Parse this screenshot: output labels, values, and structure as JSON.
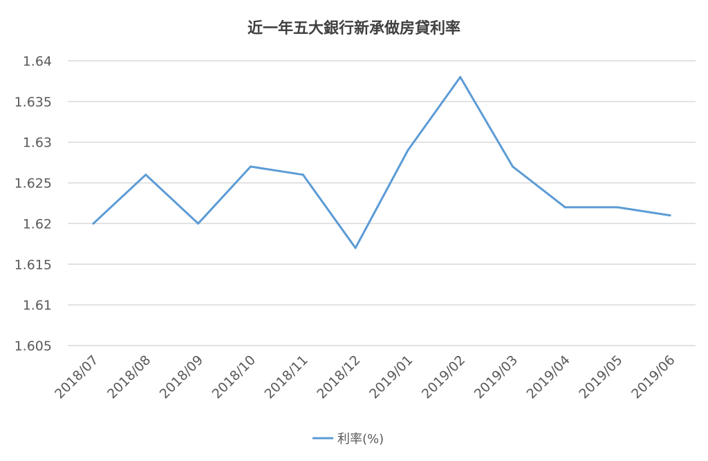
{
  "chart_data": {
    "type": "line",
    "title": "近一年五大銀行新承做房貸利率",
    "xlabel": "",
    "ylabel": "",
    "categories": [
      "2018/07",
      "2018/08",
      "2018/09",
      "2018/10",
      "2018/11",
      "2018/12",
      "2019/01",
      "2019/02",
      "2019/03",
      "2019/04",
      "2019/05",
      "2019/06"
    ],
    "series": [
      {
        "name": "利率(%)",
        "color": "#5b9bd5",
        "values": [
          1.62,
          1.626,
          1.62,
          1.627,
          1.626,
          1.617,
          1.629,
          1.638,
          1.627,
          1.622,
          1.622,
          1.621
        ]
      }
    ],
    "ylim": [
      1.605,
      1.64
    ],
    "yticks": [
      1.605,
      1.61,
      1.615,
      1.62,
      1.625,
      1.63,
      1.635,
      1.64
    ],
    "ytick_labels": [
      "1.605",
      "1.61",
      "1.615",
      "1.62",
      "1.625",
      "1.63",
      "1.635",
      "1.64"
    ],
    "grid": true,
    "legend_position": "bottom"
  }
}
